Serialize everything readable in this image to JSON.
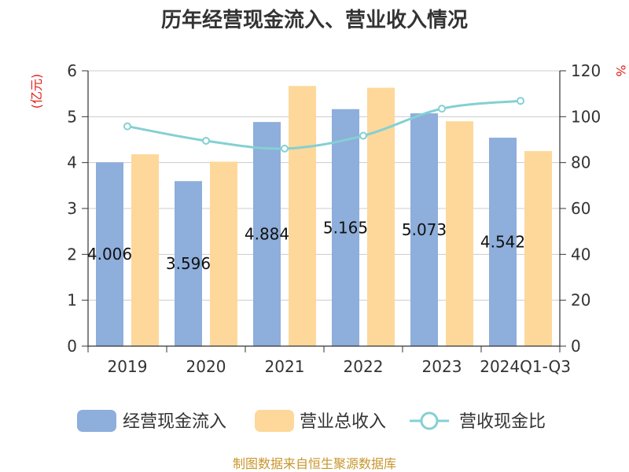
{
  "chart_data": {
    "type": "bar",
    "title": "历年经营现金流入、营业收入情况",
    "categories": [
      "2019",
      "2020",
      "2021",
      "2022",
      "2023",
      "2024Q1-Q3"
    ],
    "y_left": {
      "unit": "(亿元)",
      "ylim": [
        0,
        6
      ],
      "ticks": [
        0,
        1,
        2,
        3,
        4,
        5,
        6
      ]
    },
    "y_right": {
      "unit": "%",
      "ylim": [
        0,
        120
      ],
      "ticks": [
        0,
        20,
        40,
        60,
        80,
        100,
        120
      ]
    },
    "series": [
      {
        "name": "经营现金流入",
        "type": "bar",
        "axis": "left",
        "color": "#8eaedb",
        "values": [
          4.006,
          3.596,
          4.884,
          5.165,
          5.073,
          4.542
        ],
        "labels": [
          "4.006",
          "3.596",
          "4.884",
          "5.165",
          "5.073",
          "4.542"
        ]
      },
      {
        "name": "营业总收入",
        "type": "bar",
        "axis": "left",
        "color": "#fdd89a",
        "values": [
          4.18,
          4.02,
          5.67,
          5.63,
          4.9,
          4.25
        ]
      },
      {
        "name": "营收现金比",
        "type": "line",
        "axis": "right",
        "color": "#84d0d3",
        "values": [
          95.8,
          89.5,
          86.1,
          91.7,
          103.5,
          106.9
        ]
      }
    ],
    "grid": true,
    "legend_position": "bottom"
  },
  "footer": {
    "source": "制图数据来自恒生聚源数据库"
  }
}
